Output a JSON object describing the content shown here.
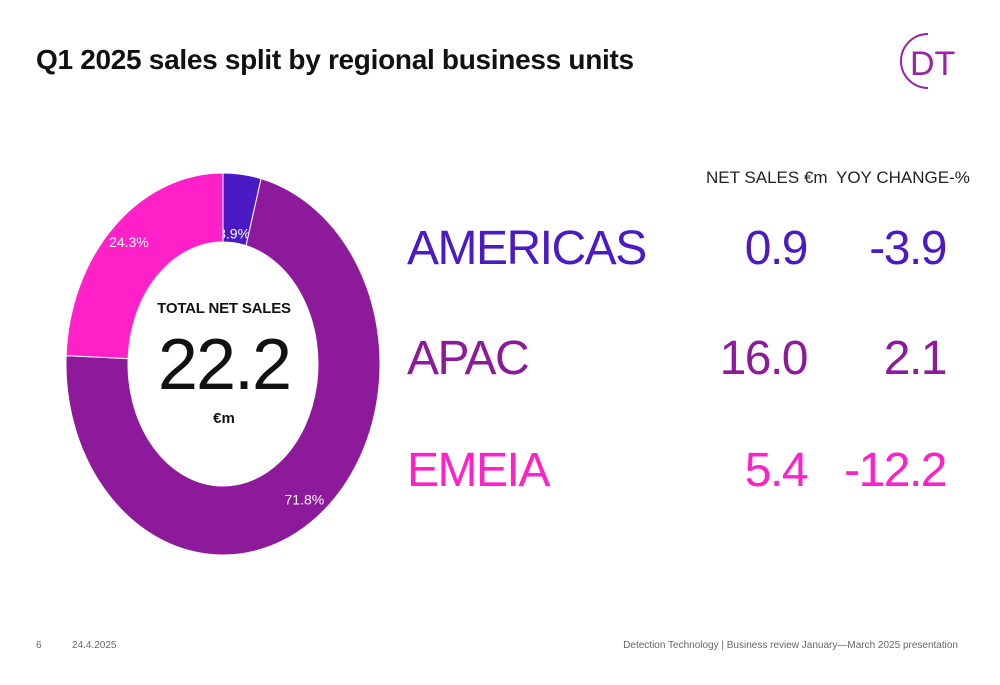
{
  "title": "Q1 2025 sales split by regional business units",
  "logo_text": "DT",
  "colors": {
    "americas": "#4b1ac4",
    "apac": "#8d1a9b",
    "emeia": "#ff20c8",
    "logo": "#9b21a6"
  },
  "total": {
    "label": "TOTAL NET SALES",
    "value": "22.2",
    "unit": "€m"
  },
  "table": {
    "headers": {
      "net_sales": "NET SALES €m",
      "yoy_change": "YOY CHANGE-%"
    },
    "rows": [
      {
        "region": "AMERICAS",
        "net_sales": "0.9",
        "yoy": "-3.9"
      },
      {
        "region": "APAC",
        "net_sales": "16.0",
        "yoy": "2.1"
      },
      {
        "region": "EMEIA",
        "net_sales": "5.4",
        "yoy": "-12.2"
      }
    ]
  },
  "chart_data": {
    "type": "pie",
    "categories": [
      "AMERICAS",
      "APAC",
      "EMEIA"
    ],
    "values": [
      3.9,
      71.8,
      24.3
    ],
    "labels": [
      "3.9%",
      "71.8%",
      "24.3%"
    ]
  },
  "footer": {
    "page": "6",
    "date": "24.4.2025",
    "source": "Detection Technology | Business review January—March 2025 presentation"
  }
}
